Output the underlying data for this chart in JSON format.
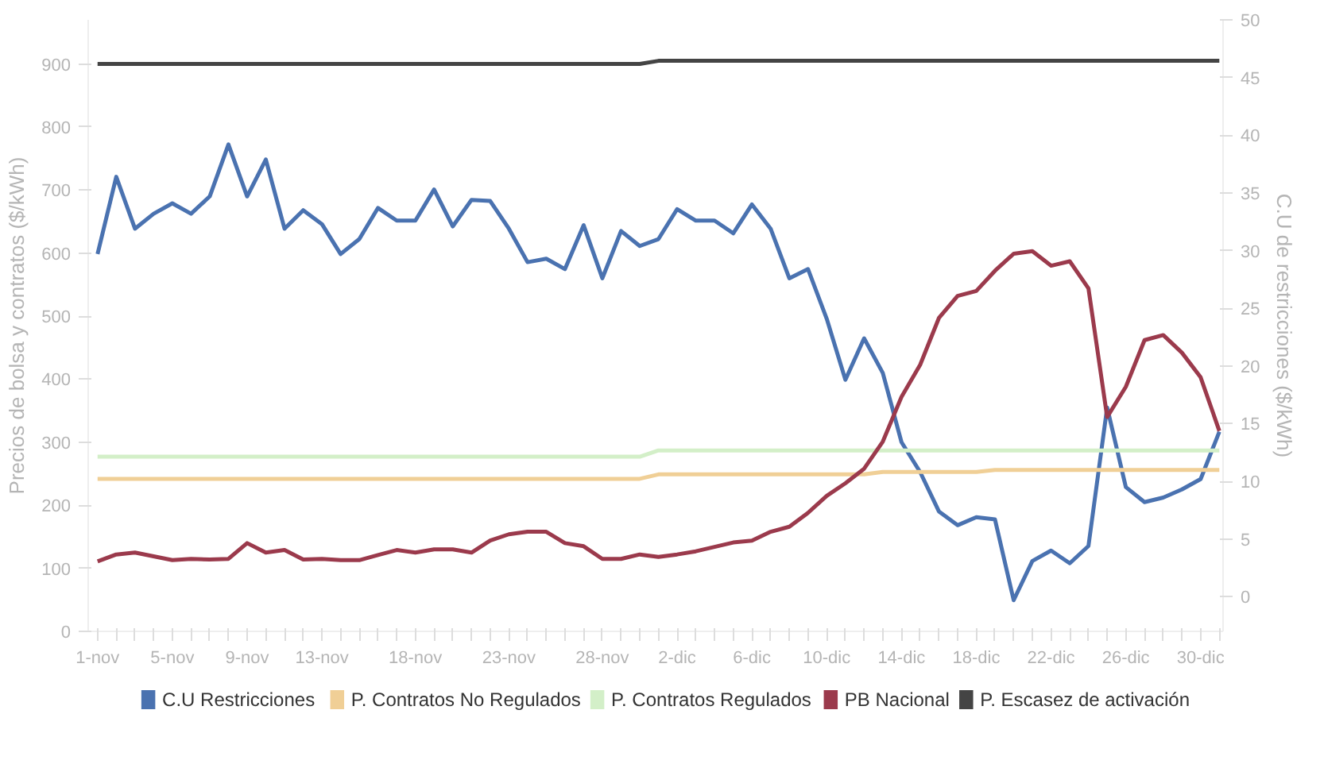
{
  "chart_data": {
    "type": "line",
    "categories": [
      "1-nov",
      null,
      null,
      null,
      "5-nov",
      null,
      null,
      null,
      "9-nov",
      null,
      null,
      null,
      "13-nov",
      null,
      null,
      null,
      null,
      "18-nov",
      null,
      null,
      null,
      null,
      "23-nov",
      null,
      null,
      null,
      null,
      "28-nov",
      null,
      null,
      null,
      "2-dic",
      null,
      null,
      null,
      "6-dic",
      null,
      null,
      null,
      "10-dic",
      null,
      null,
      null,
      "14-dic",
      null,
      null,
      null,
      "18-dic",
      null,
      null,
      null,
      "22-dic",
      null,
      null,
      null,
      "26-dic",
      null,
      null,
      null,
      "30-dic",
      null
    ],
    "ylabel": "Precios de bolsa y contratos ($/kWh)",
    "y2label": "C.U de restricciones ($/kWh)",
    "ylim": [
      0,
      970
    ],
    "yticks": [
      0,
      100,
      200,
      300,
      400,
      500,
      600,
      700,
      800,
      900
    ],
    "y2lim": [
      -3,
      50
    ],
    "y2ticks": [
      0,
      5,
      10,
      15,
      20,
      25,
      30,
      35,
      40,
      45,
      50
    ],
    "grid": false,
    "legend": "bottom",
    "marker": "none",
    "line_style": "solid",
    "series": [
      {
        "name": "C.U Restricciones",
        "color": "#4a72b0",
        "axis": "y2",
        "values": [
          29.7,
          36.4,
          31.9,
          33.2,
          34.1,
          33.2,
          34.7,
          39.2,
          34.7,
          37.9,
          31.9,
          33.5,
          32.3,
          29.7,
          31.0,
          33.7,
          32.6,
          32.6,
          35.3,
          32.1,
          34.4,
          34.3,
          31.9,
          29.0,
          29.3,
          28.4,
          32.2,
          27.6,
          31.7,
          30.4,
          31.0,
          33.6,
          32.6,
          32.6,
          31.5,
          34.0,
          31.9,
          27.6,
          28.4,
          24.1,
          18.8,
          22.4,
          19.4,
          13.4,
          10.8,
          7.4,
          6.2,
          6.9,
          6.7,
          -0.3,
          3.1,
          4.0,
          2.9,
          4.4,
          16.4,
          9.5,
          8.2,
          8.6,
          9.3,
          10.2,
          14.3
        ]
      },
      {
        "name": "P. Contratos No Regulados",
        "color": "#f0cf96",
        "values": [
          242,
          242,
          242,
          242,
          242,
          242,
          242,
          242,
          242,
          242,
          242,
          242,
          242,
          242,
          242,
          242,
          242,
          242,
          242,
          242,
          242,
          242,
          242,
          242,
          242,
          242,
          242,
          242,
          242,
          242,
          249,
          249,
          249,
          249,
          249,
          249,
          249,
          249,
          249,
          249,
          249,
          249,
          253,
          253,
          253,
          253,
          253,
          253,
          256,
          256,
          256,
          256,
          256,
          256,
          256,
          256,
          256,
          256,
          256,
          256,
          256
        ]
      },
      {
        "name": "P. Contratos Regulados",
        "color": "#d3efc8",
        "values": [
          277,
          277,
          277,
          277,
          277,
          277,
          277,
          277,
          277,
          277,
          277,
          277,
          277,
          277,
          277,
          277,
          277,
          277,
          277,
          277,
          277,
          277,
          277,
          277,
          277,
          277,
          277,
          277,
          277,
          277,
          287,
          287,
          287,
          287,
          287,
          287,
          287,
          287,
          287,
          287,
          287,
          287,
          287,
          287,
          287,
          287,
          287,
          287,
          287,
          287,
          287,
          287,
          287,
          287,
          287,
          287,
          287,
          287,
          287,
          287,
          287
        ]
      },
      {
        "name": "PB Nacional",
        "color": "#9b3a4c",
        "values": [
          111,
          122,
          125,
          119,
          113,
          115,
          114,
          115,
          140,
          125,
          129,
          114,
          115,
          113,
          113,
          121,
          129,
          125,
          130,
          130,
          125,
          144,
          154,
          158,
          158,
          140,
          135,
          115,
          115,
          122,
          118,
          122,
          127,
          134,
          141,
          144,
          158,
          166,
          188,
          215,
          235,
          258,
          301,
          372,
          423,
          497,
          532,
          540,
          572,
          599,
          603,
          580,
          587,
          544,
          340,
          388,
          462,
          470,
          442,
          403,
          318
        ]
      },
      {
        "name": "P. Escasez de activación",
        "color": "#444444",
        "values": [
          900,
          900,
          900,
          900,
          900,
          900,
          900,
          900,
          900,
          900,
          900,
          900,
          900,
          900,
          900,
          900,
          900,
          900,
          900,
          900,
          900,
          900,
          900,
          900,
          900,
          900,
          900,
          900,
          900,
          900,
          905,
          905,
          905,
          905,
          905,
          905,
          905,
          905,
          905,
          905,
          905,
          905,
          905,
          905,
          905,
          905,
          905,
          905,
          905,
          905,
          905,
          905,
          905,
          905,
          905,
          905,
          905,
          905,
          905,
          905,
          905
        ]
      }
    ]
  }
}
